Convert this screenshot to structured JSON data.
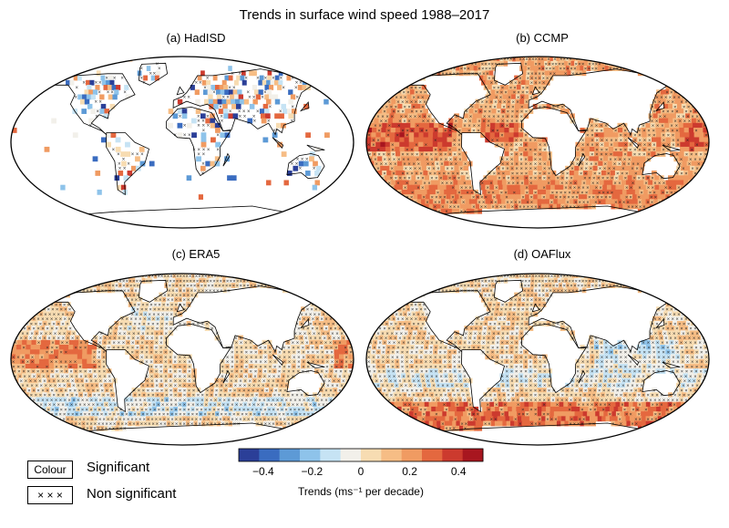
{
  "title": "Trends in surface wind speed 1988–2017",
  "panels": [
    {
      "id": "a",
      "label": "(a) HadISD"
    },
    {
      "id": "b",
      "label": "(b) CCMP"
    },
    {
      "id": "c",
      "label": "(c) ERA5"
    },
    {
      "id": "d",
      "label": "(d) OAFlux"
    }
  ],
  "legend": {
    "significant_box": "Colour",
    "significant_text": "Significant",
    "nonsig_box": "× × ×",
    "nonsig_text": "Non significant"
  },
  "colorbar": {
    "colors": [
      "#2b3f98",
      "#3a6cc0",
      "#5d9ad6",
      "#8ec3ea",
      "#c6e3f4",
      "#f2f0ea",
      "#f7dcb2",
      "#f6bd85",
      "#f09b62",
      "#e4683f",
      "#cc3a2e",
      "#a8161f"
    ],
    "tick_labels": [
      "−0.4",
      "−0.2",
      "0",
      "0.2",
      "0.4"
    ],
    "tick_values": [
      -0.4,
      -0.2,
      0,
      0.2,
      0.4
    ],
    "range": [
      -0.5,
      0.5
    ],
    "units_label": "Trends (ms⁻¹ per decade)"
  }
}
